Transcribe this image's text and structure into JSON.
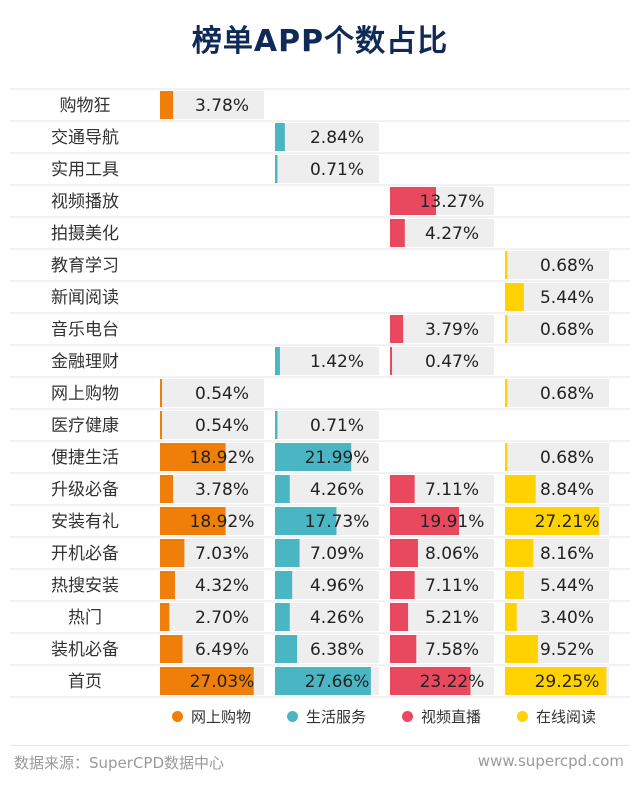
{
  "title": "榜单APP个数占比",
  "chart_data": {
    "type": "bar",
    "title": "榜单APP个数占比",
    "categories": [
      "购物狂",
      "交通导航",
      "实用工具",
      "视频播放",
      "拍摄美化",
      "教育学习",
      "新闻阅读",
      "音乐电台",
      "金融理财",
      "网上购物",
      "医疗健康",
      "便捷生活",
      "升级必备",
      "安装有礼",
      "开机必备",
      "热搜安装",
      "热门",
      "装机必备",
      "首页"
    ],
    "series": [
      {
        "name": "网上购物",
        "color": "#f07f09",
        "values": [
          3.78,
          null,
          null,
          null,
          null,
          null,
          null,
          null,
          null,
          0.54,
          0.54,
          18.92,
          3.78,
          18.92,
          7.03,
          4.32,
          2.7,
          6.49,
          27.03
        ],
        "labels": [
          "3.78%",
          "",
          "",
          "",
          "",
          "",
          "",
          "",
          "",
          "0.54%",
          "0.54%",
          "18.92%",
          "3.78%",
          "18.92%",
          "7.03%",
          "4.32%",
          "2.70%",
          "6.49%",
          "27.03%"
        ]
      },
      {
        "name": "生活服务",
        "color": "#4bb6c3",
        "values": [
          null,
          2.84,
          0.71,
          null,
          null,
          null,
          null,
          null,
          1.42,
          null,
          0.71,
          21.99,
          4.26,
          17.73,
          7.09,
          4.96,
          4.26,
          6.38,
          27.66
        ],
        "labels": [
          "",
          "2.84%",
          "0.71%",
          "",
          "",
          "",
          "",
          "",
          "1.42%",
          "",
          "0.71%",
          "21.99%",
          "4.26%",
          "17.73%",
          "7.09%",
          "4.96%",
          "4.26%",
          "6.38%",
          "27.66%"
        ]
      },
      {
        "name": "视频直播",
        "color": "#e8495e",
        "values": [
          null,
          null,
          null,
          13.27,
          4.27,
          null,
          null,
          3.79,
          0.47,
          null,
          null,
          null,
          7.11,
          19.91,
          8.06,
          7.11,
          5.21,
          7.58,
          23.22
        ],
        "labels": [
          "",
          "",
          "",
          "13.27%",
          "4.27%",
          "",
          "",
          "3.79%",
          "0.47%",
          "",
          "",
          "",
          "7.11%",
          "19.91%",
          "8.06%",
          "7.11%",
          "5.21%",
          "7.58%",
          "23.22%"
        ]
      },
      {
        "name": "在线阅读",
        "color": "#ffd200",
        "values": [
          null,
          null,
          null,
          null,
          null,
          0.68,
          5.44,
          0.68,
          null,
          0.68,
          null,
          0.68,
          8.84,
          27.21,
          8.16,
          5.44,
          3.4,
          9.52,
          29.25
        ],
        "labels": [
          "",
          "",
          "",
          "",
          "",
          "0.68%",
          "5.44%",
          "0.68%",
          "",
          "0.68%",
          "",
          "0.68%",
          "8.84%",
          "27.21%",
          "8.16%",
          "5.44%",
          "3.40%",
          "9.52%",
          "29.25%"
        ]
      }
    ],
    "ylim": [
      0,
      30
    ],
    "legend_position": "bottom"
  },
  "footer": {
    "source": "数据来源：SuperCPD数据中心",
    "site": "www.supercpd.com"
  }
}
